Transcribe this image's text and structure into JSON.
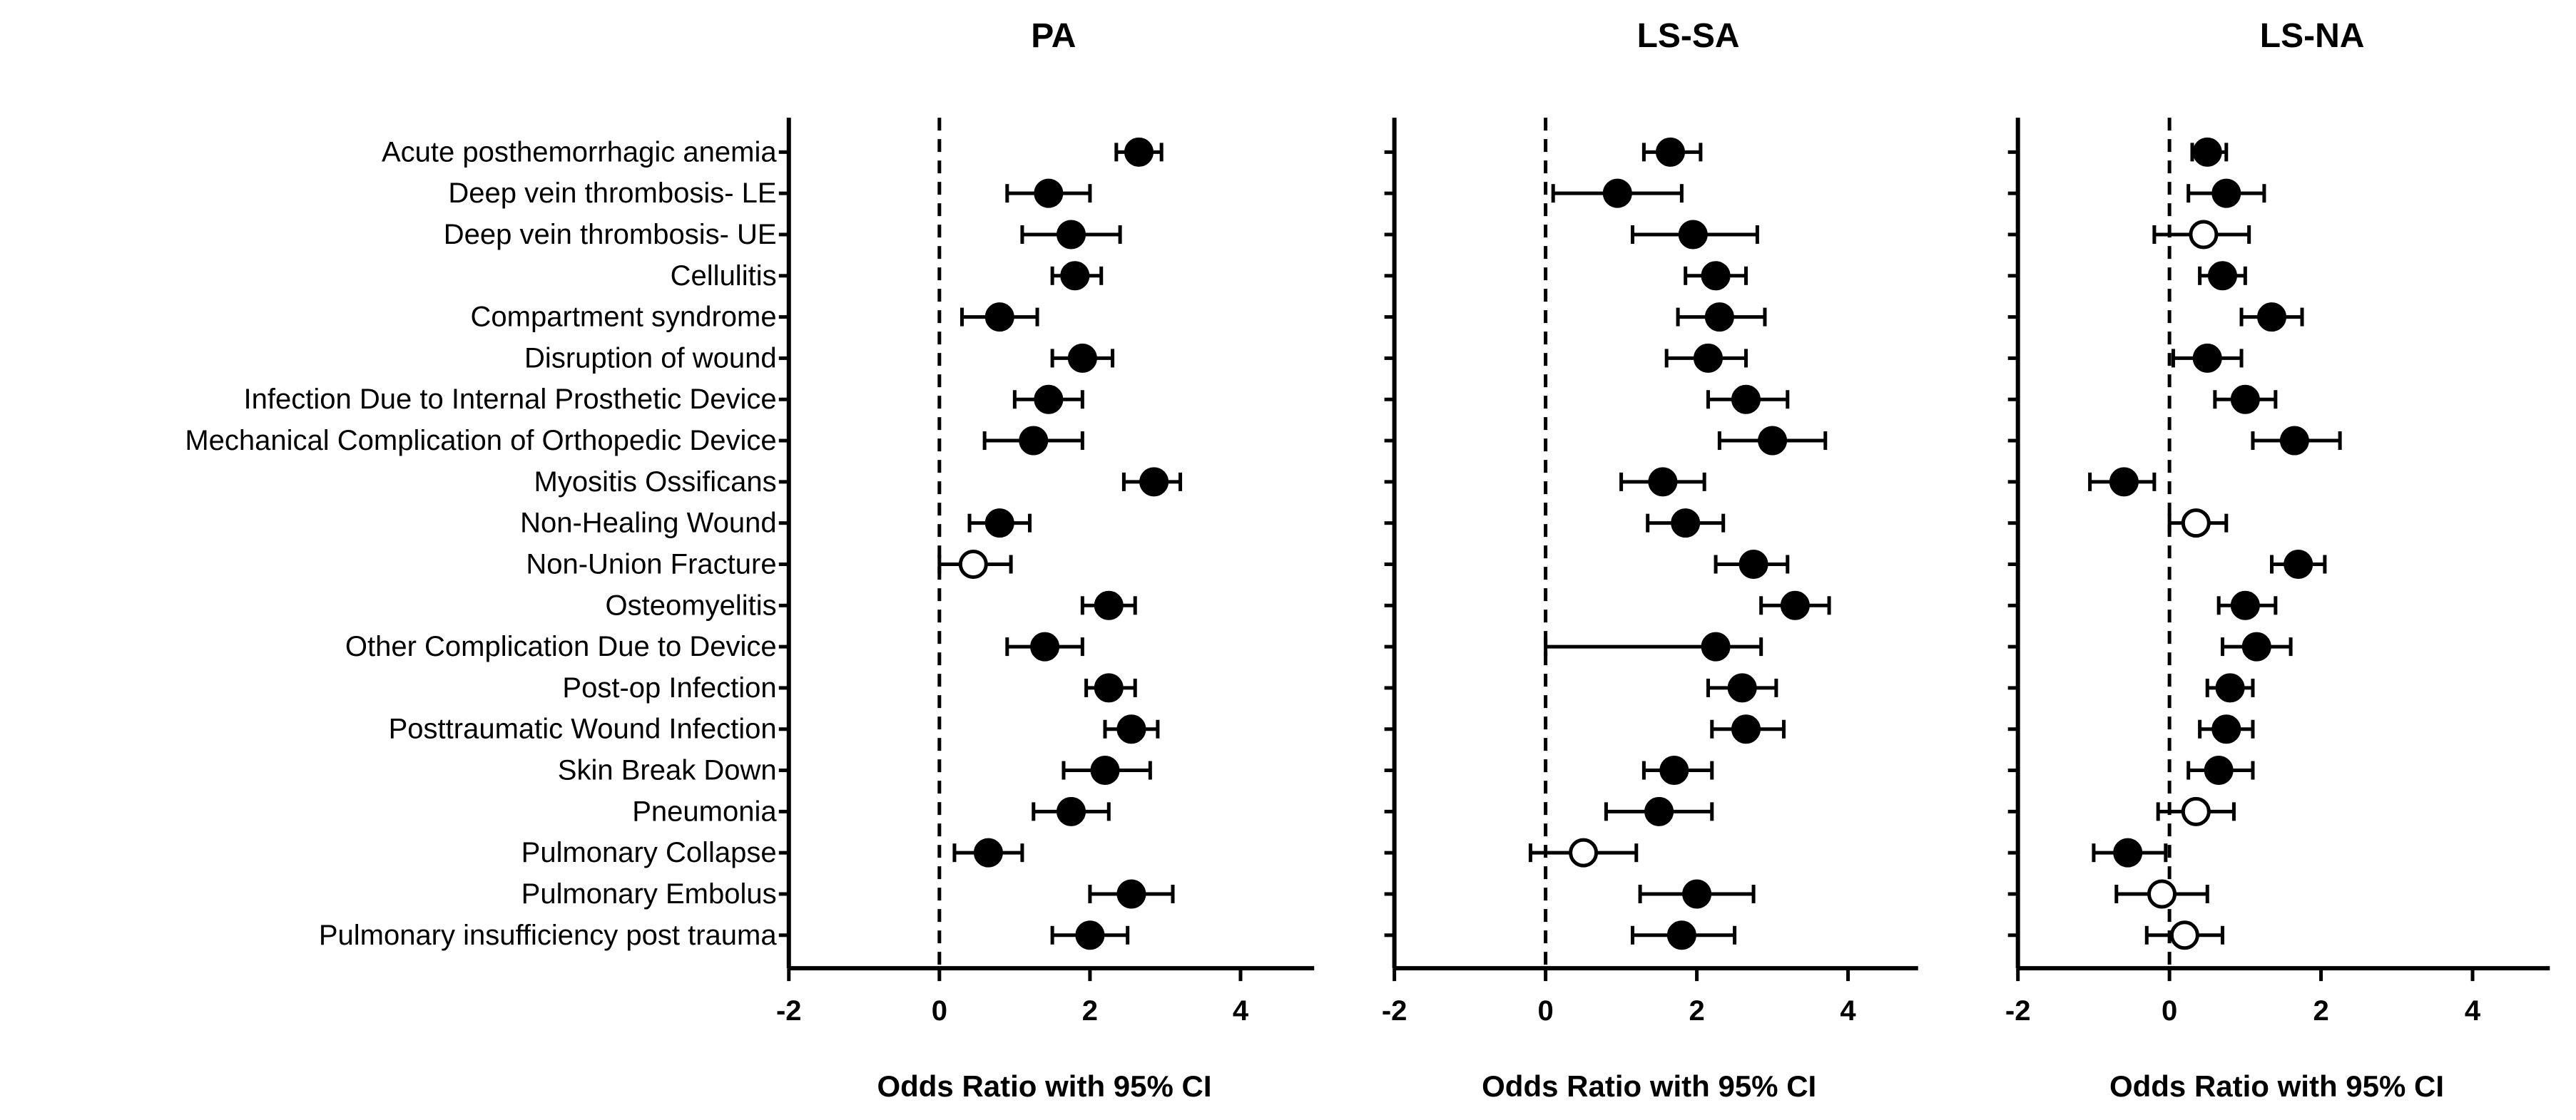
{
  "chart_data": {
    "type": "forest",
    "row_labels": [
      "Acute posthemorrhagic anemia",
      "Deep vein thrombosis- LE",
      "Deep vein thrombosis- UE",
      "Cellulitis",
      "Compartment syndrome",
      "Disruption of wound",
      "Infection Due to Internal Prosthetic Device",
      "Mechanical Complication of Orthopedic Device",
      "Myositis Ossificans",
      "Non-Healing Wound",
      "Non-Union Fracture",
      "Osteomyelitis",
      "Other Complication Due to Device",
      "Post-op Infection",
      "Posttraumatic Wound Infection",
      "Skin Break Down",
      "Pneumonia",
      "Pulmonary Collapse",
      "Pulmonary Embolus",
      "Pulmonary insufficiency post trauma"
    ],
    "xlim": [
      -2,
      5
    ],
    "x_ticks": [
      -2,
      0,
      2,
      4
    ],
    "reference_line_x": 0,
    "marker_legend": {
      "filled": "significant",
      "open": "not significant"
    },
    "panels": [
      {
        "title": "PA",
        "xlabel": "Odds Ratio with 95% CI",
        "points": [
          {
            "est": 2.65,
            "lo": 2.35,
            "hi": 2.95,
            "filled": true
          },
          {
            "est": 1.45,
            "lo": 0.9,
            "hi": 2.0,
            "filled": true
          },
          {
            "est": 1.75,
            "lo": 1.1,
            "hi": 2.4,
            "filled": true
          },
          {
            "est": 1.8,
            "lo": 1.5,
            "hi": 2.15,
            "filled": true
          },
          {
            "est": 0.8,
            "lo": 0.3,
            "hi": 1.3,
            "filled": true
          },
          {
            "est": 1.9,
            "lo": 1.5,
            "hi": 2.3,
            "filled": true
          },
          {
            "est": 1.45,
            "lo": 1.0,
            "hi": 1.9,
            "filled": true
          },
          {
            "est": 1.25,
            "lo": 0.6,
            "hi": 1.9,
            "filled": true
          },
          {
            "est": 2.85,
            "lo": 2.45,
            "hi": 3.2,
            "filled": true
          },
          {
            "est": 0.8,
            "lo": 0.4,
            "hi": 1.2,
            "filled": true
          },
          {
            "est": 0.45,
            "lo": 0.0,
            "hi": 0.95,
            "filled": false
          },
          {
            "est": 2.25,
            "lo": 1.9,
            "hi": 2.6,
            "filled": true
          },
          {
            "est": 1.4,
            "lo": 0.9,
            "hi": 1.9,
            "filled": true
          },
          {
            "est": 2.25,
            "lo": 1.95,
            "hi": 2.6,
            "filled": true
          },
          {
            "est": 2.55,
            "lo": 2.2,
            "hi": 2.9,
            "filled": true
          },
          {
            "est": 2.2,
            "lo": 1.65,
            "hi": 2.8,
            "filled": true
          },
          {
            "est": 1.75,
            "lo": 1.25,
            "hi": 2.25,
            "filled": true
          },
          {
            "est": 0.65,
            "lo": 0.2,
            "hi": 1.1,
            "filled": true
          },
          {
            "est": 2.55,
            "lo": 2.0,
            "hi": 3.1,
            "filled": true
          },
          {
            "est": 2.0,
            "lo": 1.5,
            "hi": 2.5,
            "filled": true
          }
        ]
      },
      {
        "title": "LS-SA",
        "xlabel": "Odds Ratio with 95% CI",
        "points": [
          {
            "est": 1.65,
            "lo": 1.3,
            "hi": 2.05,
            "filled": true
          },
          {
            "est": 0.95,
            "lo": 0.1,
            "hi": 1.8,
            "filled": true
          },
          {
            "est": 1.95,
            "lo": 1.15,
            "hi": 2.8,
            "filled": true
          },
          {
            "est": 2.25,
            "lo": 1.85,
            "hi": 2.65,
            "filled": true
          },
          {
            "est": 2.3,
            "lo": 1.75,
            "hi": 2.9,
            "filled": true
          },
          {
            "est": 2.15,
            "lo": 1.6,
            "hi": 2.65,
            "filled": true
          },
          {
            "est": 2.65,
            "lo": 2.15,
            "hi": 3.2,
            "filled": true
          },
          {
            "est": 3.0,
            "lo": 2.3,
            "hi": 3.7,
            "filled": true
          },
          {
            "est": 1.55,
            "lo": 1.0,
            "hi": 2.1,
            "filled": true
          },
          {
            "est": 1.85,
            "lo": 1.35,
            "hi": 2.35,
            "filled": true
          },
          {
            "est": 2.75,
            "lo": 2.25,
            "hi": 3.2,
            "filled": true
          },
          {
            "est": 3.3,
            "lo": 2.85,
            "hi": 3.75,
            "filled": true
          },
          {
            "est": 2.25,
            "lo": 0.0,
            "hi": 2.85,
            "filled": true
          },
          {
            "est": 2.6,
            "lo": 2.15,
            "hi": 3.05,
            "filled": true
          },
          {
            "est": 2.65,
            "lo": 2.2,
            "hi": 3.15,
            "filled": true
          },
          {
            "est": 1.7,
            "lo": 1.3,
            "hi": 2.2,
            "filled": true
          },
          {
            "est": 1.5,
            "lo": 0.8,
            "hi": 2.2,
            "filled": true
          },
          {
            "est": 0.5,
            "lo": -0.2,
            "hi": 1.2,
            "filled": false
          },
          {
            "est": 2.0,
            "lo": 1.25,
            "hi": 2.75,
            "filled": true
          },
          {
            "est": 1.8,
            "lo": 1.15,
            "hi": 2.5,
            "filled": true
          }
        ]
      },
      {
        "title": "LS-NA",
        "xlabel": "Odds Ratio with 95% CI",
        "points": [
          {
            "est": 0.5,
            "lo": 0.3,
            "hi": 0.75,
            "filled": true
          },
          {
            "est": 0.75,
            "lo": 0.25,
            "hi": 1.25,
            "filled": true
          },
          {
            "est": 0.45,
            "lo": -0.2,
            "hi": 1.05,
            "filled": false
          },
          {
            "est": 0.7,
            "lo": 0.4,
            "hi": 1.0,
            "filled": true
          },
          {
            "est": 1.35,
            "lo": 0.95,
            "hi": 1.75,
            "filled": true
          },
          {
            "est": 0.5,
            "lo": 0.05,
            "hi": 0.95,
            "filled": true
          },
          {
            "est": 1.0,
            "lo": 0.6,
            "hi": 1.4,
            "filled": true
          },
          {
            "est": 1.65,
            "lo": 1.1,
            "hi": 2.25,
            "filled": true
          },
          {
            "est": -0.6,
            "lo": -1.05,
            "hi": -0.2,
            "filled": true
          },
          {
            "est": 0.35,
            "lo": 0.0,
            "hi": 0.75,
            "filled": false
          },
          {
            "est": 1.7,
            "lo": 1.35,
            "hi": 2.05,
            "filled": true
          },
          {
            "est": 1.0,
            "lo": 0.65,
            "hi": 1.4,
            "filled": true
          },
          {
            "est": 1.15,
            "lo": 0.7,
            "hi": 1.6,
            "filled": true
          },
          {
            "est": 0.8,
            "lo": 0.5,
            "hi": 1.1,
            "filled": true
          },
          {
            "est": 0.75,
            "lo": 0.4,
            "hi": 1.1,
            "filled": true
          },
          {
            "est": 0.65,
            "lo": 0.25,
            "hi": 1.1,
            "filled": true
          },
          {
            "est": 0.35,
            "lo": -0.15,
            "hi": 0.85,
            "filled": false
          },
          {
            "est": -0.55,
            "lo": -1.0,
            "hi": -0.05,
            "filled": true
          },
          {
            "est": -0.1,
            "lo": -0.7,
            "hi": 0.5,
            "filled": false
          },
          {
            "est": 0.2,
            "lo": -0.3,
            "hi": 0.7,
            "filled": false
          }
        ]
      }
    ]
  }
}
